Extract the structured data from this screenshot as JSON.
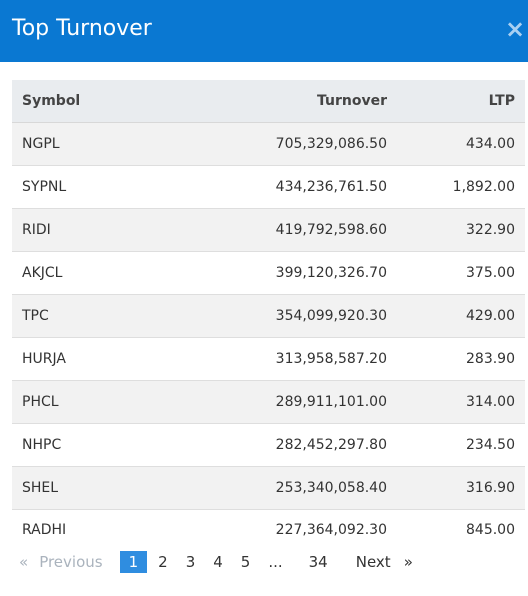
{
  "header": {
    "title": "Top Turnover",
    "close_label": "×"
  },
  "table": {
    "columns": [
      "Symbol",
      "Turnover",
      "LTP"
    ],
    "rows": [
      [
        "NGPL",
        "705,329,086.50",
        "434.00"
      ],
      [
        "SYPNL",
        "434,236,761.50",
        "1,892.00"
      ],
      [
        "RIDI",
        "419,792,598.60",
        "322.90"
      ],
      [
        "AKJCL",
        "399,120,326.70",
        "375.00"
      ],
      [
        "TPC",
        "354,099,920.30",
        "429.00"
      ],
      [
        "HURJA",
        "313,958,587.20",
        "283.90"
      ],
      [
        "PHCL",
        "289,911,101.00",
        "314.00"
      ],
      [
        "NHPC",
        "282,452,297.80",
        "234.50"
      ],
      [
        "SHEL",
        "253,340,058.40",
        "316.90"
      ],
      [
        "RADHI",
        "227,364,092.30",
        "845.00"
      ]
    ]
  },
  "pagination": {
    "prev_arrow": "«",
    "prev_label": "Previous",
    "pages": [
      "1",
      "2",
      "3",
      "4",
      "5",
      "...",
      "34"
    ],
    "current": "1",
    "next_label": "Next",
    "next_arrow": "»"
  }
}
